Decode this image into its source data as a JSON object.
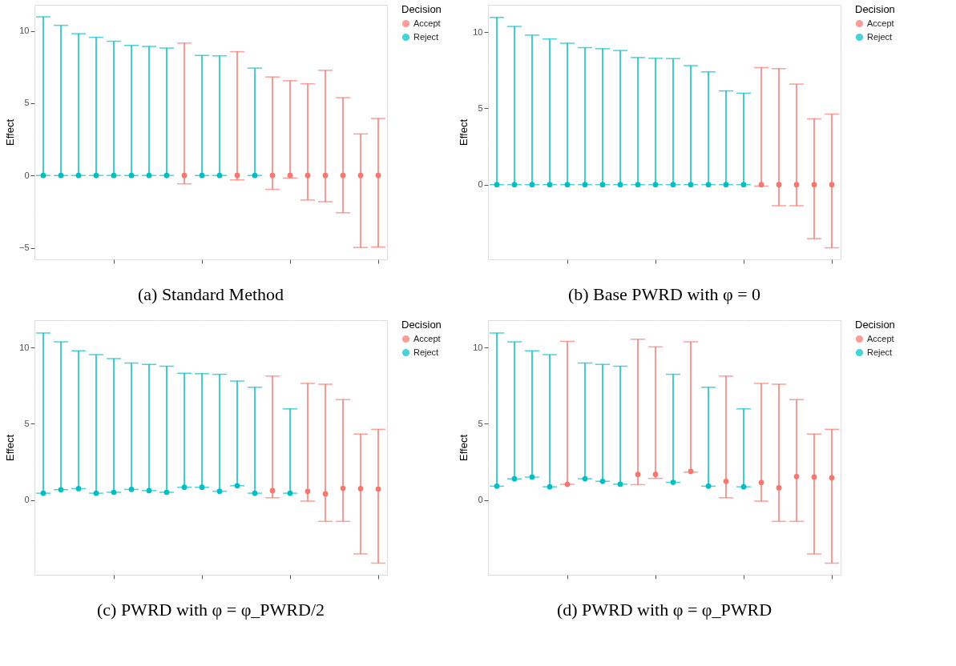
{
  "chart_data": [
    {
      "type": "scatter",
      "ylabel": "Effect",
      "legend_title": "Decision",
      "legend": "right",
      "grid": true,
      "tick_labels": "y",
      "marker": "circle",
      "categories": [
        null,
        null,
        null,
        null,
        null,
        null,
        null,
        null,
        null,
        null,
        null,
        null,
        null,
        null,
        null,
        null,
        null,
        null,
        null,
        null
      ],
      "ylim": [
        -5.8,
        11.8
      ],
      "yticks": [
        -5,
        0,
        5,
        10
      ],
      "annotations": [
        "(a) Standard Method"
      ],
      "series": [
        {
          "name": "Accept",
          "color": "#f8766d",
          "values": [
            null,
            null,
            null,
            null,
            null,
            null,
            null,
            null,
            0,
            null,
            null,
            0,
            null,
            0,
            0,
            0,
            0,
            0,
            0,
            0
          ],
          "errors": [
            null,
            null,
            null,
            null,
            null,
            null,
            null,
            null,
            [
              -0.58,
              9.15
            ],
            null,
            null,
            [
              -0.31,
              8.56
            ],
            null,
            [
              -0.96,
              6.81
            ],
            [
              -0.18,
              6.55
            ],
            [
              -1.7,
              6.34
            ],
            [
              -1.81,
              7.27
            ],
            [
              -2.58,
              5.38
            ],
            [
              -4.98,
              2.87
            ],
            [
              -4.95,
              3.94
            ]
          ]
        },
        {
          "name": "Reject",
          "color": "#00bfc4",
          "values": [
            0,
            0,
            0,
            0,
            0,
            0,
            0,
            0,
            null,
            0,
            0,
            null,
            0,
            null,
            null,
            null,
            null,
            null,
            null,
            null
          ],
          "errors": [
            [
              0,
              10.97
            ],
            [
              0,
              10.38
            ],
            [
              0,
              9.8
            ],
            [
              0,
              9.55
            ],
            [
              0,
              9.28
            ],
            [
              0,
              8.99
            ],
            [
              0,
              8.92
            ],
            [
              0,
              8.81
            ],
            null,
            [
              0,
              8.3
            ],
            [
              0,
              8.27
            ],
            null,
            [
              0,
              7.42
            ],
            null,
            null,
            null,
            null,
            null,
            null,
            null
          ]
        }
      ]
    },
    {
      "type": "scatter",
      "ylabel": "Effect",
      "legend_title": "Decision",
      "legend": "right",
      "grid": true,
      "tick_labels": "y",
      "marker": "circle",
      "categories": [
        null,
        null,
        null,
        null,
        null,
        null,
        null,
        null,
        null,
        null,
        null,
        null,
        null,
        null,
        null,
        null,
        null,
        null,
        null,
        null
      ],
      "ylim": [
        -4.9,
        11.8
      ],
      "yticks": [
        0,
        5,
        10
      ],
      "annotations": [
        "(b) Base PWRD with φ = 0"
      ],
      "series": [
        {
          "name": "Accept",
          "color": "#f8766d",
          "values": [
            null,
            null,
            null,
            null,
            null,
            null,
            null,
            null,
            null,
            null,
            null,
            null,
            null,
            null,
            null,
            0,
            0,
            0,
            0,
            0
          ],
          "errors": [
            null,
            null,
            null,
            null,
            null,
            null,
            null,
            null,
            null,
            null,
            null,
            null,
            null,
            null,
            null,
            [
              -0.09,
              7.68
            ],
            [
              -1.38,
              7.61
            ],
            [
              -1.38,
              6.6
            ],
            [
              -3.54,
              4.32
            ],
            [
              -4.14,
              4.63
            ]
          ]
        },
        {
          "name": "Reject",
          "color": "#00bfc4",
          "values": [
            0,
            0,
            0,
            0,
            0,
            0,
            0,
            0,
            0,
            0,
            0,
            0,
            0,
            0,
            0,
            null,
            null,
            null,
            null,
            null
          ],
          "errors": [
            [
              0,
              10.97
            ],
            [
              0,
              10.38
            ],
            [
              0,
              9.81
            ],
            [
              0,
              9.56
            ],
            [
              0,
              9.28
            ],
            [
              0,
              8.99
            ],
            [
              0,
              8.92
            ],
            [
              0,
              8.8
            ],
            [
              0,
              8.34
            ],
            [
              0,
              8.29
            ],
            [
              0,
              8.27
            ],
            [
              0,
              7.81
            ],
            [
              0,
              7.4
            ],
            [
              0,
              6.15
            ],
            [
              0,
              6.0
            ],
            null,
            null,
            null,
            null,
            null
          ]
        }
      ]
    },
    {
      "type": "scatter",
      "ylabel": "Effect",
      "legend_title": "Decision",
      "legend": "right",
      "grid": true,
      "tick_labels": "y",
      "marker": "circle",
      "categories": [
        null,
        null,
        null,
        null,
        null,
        null,
        null,
        null,
        null,
        null,
        null,
        null,
        null,
        null,
        null,
        null,
        null,
        null,
        null,
        null
      ],
      "ylim": [
        -4.9,
        11.8
      ],
      "yticks": [
        0,
        5,
        10
      ],
      "annotations": [
        "(c) PWRD with φ = φ_PWRD/2"
      ],
      "series": [
        {
          "name": "Accept",
          "color": "#f8766d",
          "values": [
            null,
            null,
            null,
            null,
            null,
            null,
            null,
            null,
            null,
            null,
            null,
            null,
            null,
            0.62,
            null,
            0.57,
            0.41,
            0.77,
            0.75,
            0.72
          ],
          "errors": [
            null,
            null,
            null,
            null,
            null,
            null,
            null,
            null,
            null,
            null,
            null,
            null,
            null,
            [
              0.15,
              8.13
            ],
            null,
            [
              -0.07,
              7.65
            ],
            [
              -1.4,
              7.6
            ],
            [
              -1.4,
              6.59
            ],
            [
              -3.53,
              4.33
            ],
            [
              -4.14,
              4.64
            ]
          ]
        },
        {
          "name": "Reject",
          "color": "#00bfc4",
          "values": [
            0.45,
            0.68,
            0.75,
            0.45,
            0.51,
            0.7,
            0.62,
            0.51,
            0.84,
            0.84,
            0.58,
            0.94,
            0.45,
            null,
            0.45,
            null,
            null,
            null,
            null,
            null
          ],
          "errors": [
            [
              0.45,
              10.96
            ],
            [
              0.68,
              10.38
            ],
            [
              0.75,
              9.79
            ],
            [
              0.45,
              9.54
            ],
            [
              0.51,
              9.28
            ],
            [
              0.7,
              8.99
            ],
            [
              0.62,
              8.9
            ],
            [
              0.51,
              8.78
            ],
            [
              0.84,
              8.32
            ],
            [
              0.84,
              8.29
            ],
            [
              0.58,
              8.25
            ],
            [
              0.94,
              7.81
            ],
            [
              0.45,
              7.4
            ],
            null,
            [
              0.45,
              5.98
            ],
            null,
            null,
            null,
            null,
            null
          ]
        }
      ]
    },
    {
      "type": "scatter",
      "ylabel": "Effect",
      "legend_title": "Decision",
      "legend": "right",
      "grid": true,
      "tick_labels": "y",
      "marker": "circle",
      "categories": [
        null,
        null,
        null,
        null,
        null,
        null,
        null,
        null,
        null,
        null,
        null,
        null,
        null,
        null,
        null,
        null,
        null,
        null,
        null,
        null
      ],
      "ylim": [
        -4.9,
        11.8
      ],
      "yticks": [
        0,
        5,
        10
      ],
      "annotations": [
        "(d) PWRD with φ = φ_PWRD"
      ],
      "series": [
        {
          "name": "Accept",
          "color": "#f8766d",
          "values": [
            null,
            null,
            null,
            null,
            1.03,
            null,
            null,
            null,
            1.68,
            1.68,
            null,
            1.88,
            null,
            1.23,
            null,
            1.15,
            0.8,
            1.54,
            1.51,
            1.46
          ],
          "errors": [
            null,
            null,
            null,
            null,
            [
              1.03,
              10.41
            ],
            null,
            null,
            null,
            [
              1.01,
              10.55
            ],
            [
              1.42,
              10.05
            ],
            null,
            [
              1.83,
              10.38
            ],
            null,
            [
              0.15,
              8.13
            ],
            null,
            [
              -0.07,
              7.65
            ],
            [
              -1.4,
              7.6
            ],
            [
              -1.4,
              6.59
            ],
            [
              -3.53,
              4.33
            ],
            [
              -4.14,
              4.64
            ]
          ]
        },
        {
          "name": "Reject",
          "color": "#00bfc4",
          "values": [
            0.91,
            1.39,
            1.51,
            0.87,
            null,
            1.4,
            1.23,
            1.04,
            null,
            null,
            1.16,
            null,
            0.91,
            null,
            0.87,
            null,
            null,
            null,
            null,
            null
          ],
          "errors": [
            [
              0.91,
              10.96
            ],
            [
              1.39,
              10.38
            ],
            [
              1.51,
              9.79
            ],
            [
              0.87,
              9.54
            ],
            null,
            [
              1.4,
              8.99
            ],
            [
              1.23,
              8.9
            ],
            [
              1.04,
              8.78
            ],
            null,
            null,
            [
              1.16,
              8.25
            ],
            null,
            [
              0.91,
              7.4
            ],
            null,
            [
              0.87,
              5.98
            ],
            null,
            null,
            null,
            null,
            null
          ]
        }
      ]
    }
  ]
}
